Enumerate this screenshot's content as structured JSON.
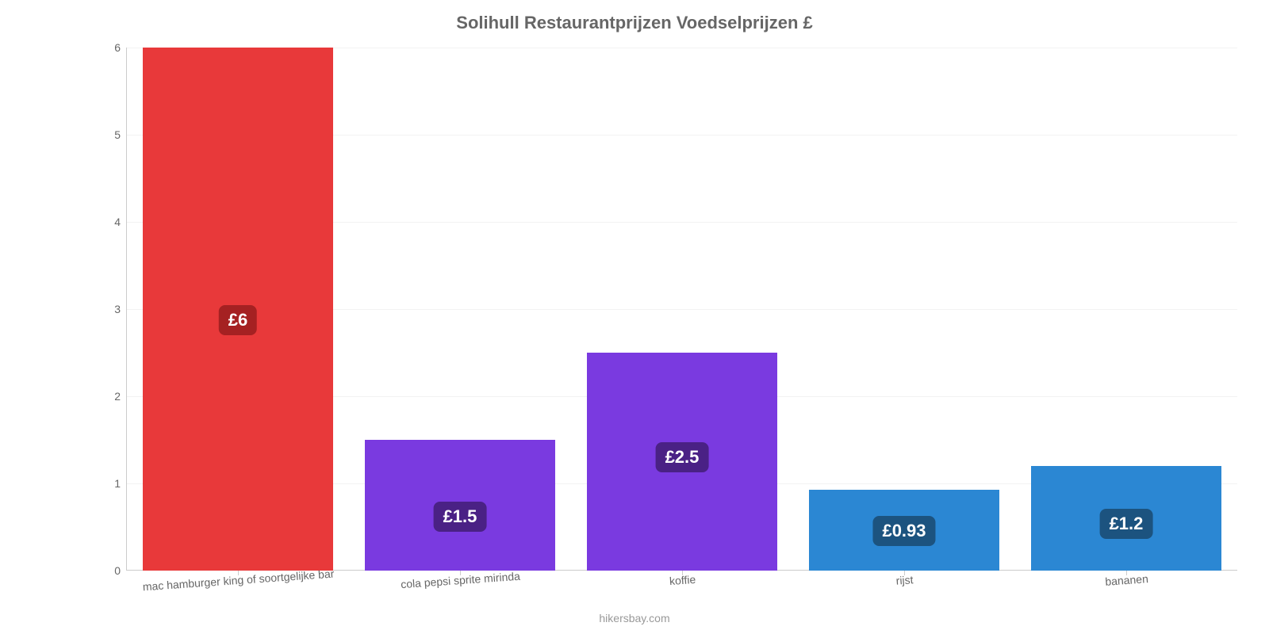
{
  "chart": {
    "type": "bar",
    "title": "Solihull Restaurantprijzen Voedselprijzen £",
    "title_fontsize": 22,
    "title_color": "#666666",
    "background_color": "#ffffff",
    "grid_color": "#f2f2f2",
    "axis_color": "#cccccc",
    "tick_color": "#666666",
    "tick_fontsize": 14,
    "ylim": [
      0,
      6
    ],
    "ytick_step": 1,
    "yticks": [
      "0",
      "1",
      "2",
      "3",
      "4",
      "5",
      "6"
    ],
    "categories": [
      "mac hamburger king of soortgelijke bar",
      "cola pepsi sprite mirinda",
      "koffie",
      "rijst",
      "bananen"
    ],
    "values": [
      6,
      1.5,
      2.5,
      0.93,
      1.2
    ],
    "value_labels": [
      "£6",
      "£1.5",
      "£2.5",
      "£0.93",
      "£1.2"
    ],
    "bar_colors": [
      "#e8393a",
      "#7a3ae0",
      "#7a3ae0",
      "#2b87d3",
      "#2b87d3"
    ],
    "badge_colors": [
      "#a52122",
      "#4a2185",
      "#4a2185",
      "#1c537f",
      "#1c537f"
    ],
    "value_label_fontsize": 22,
    "bar_width_ratio": 0.86,
    "footer": "hikersbay.com",
    "footer_color": "#999999"
  }
}
